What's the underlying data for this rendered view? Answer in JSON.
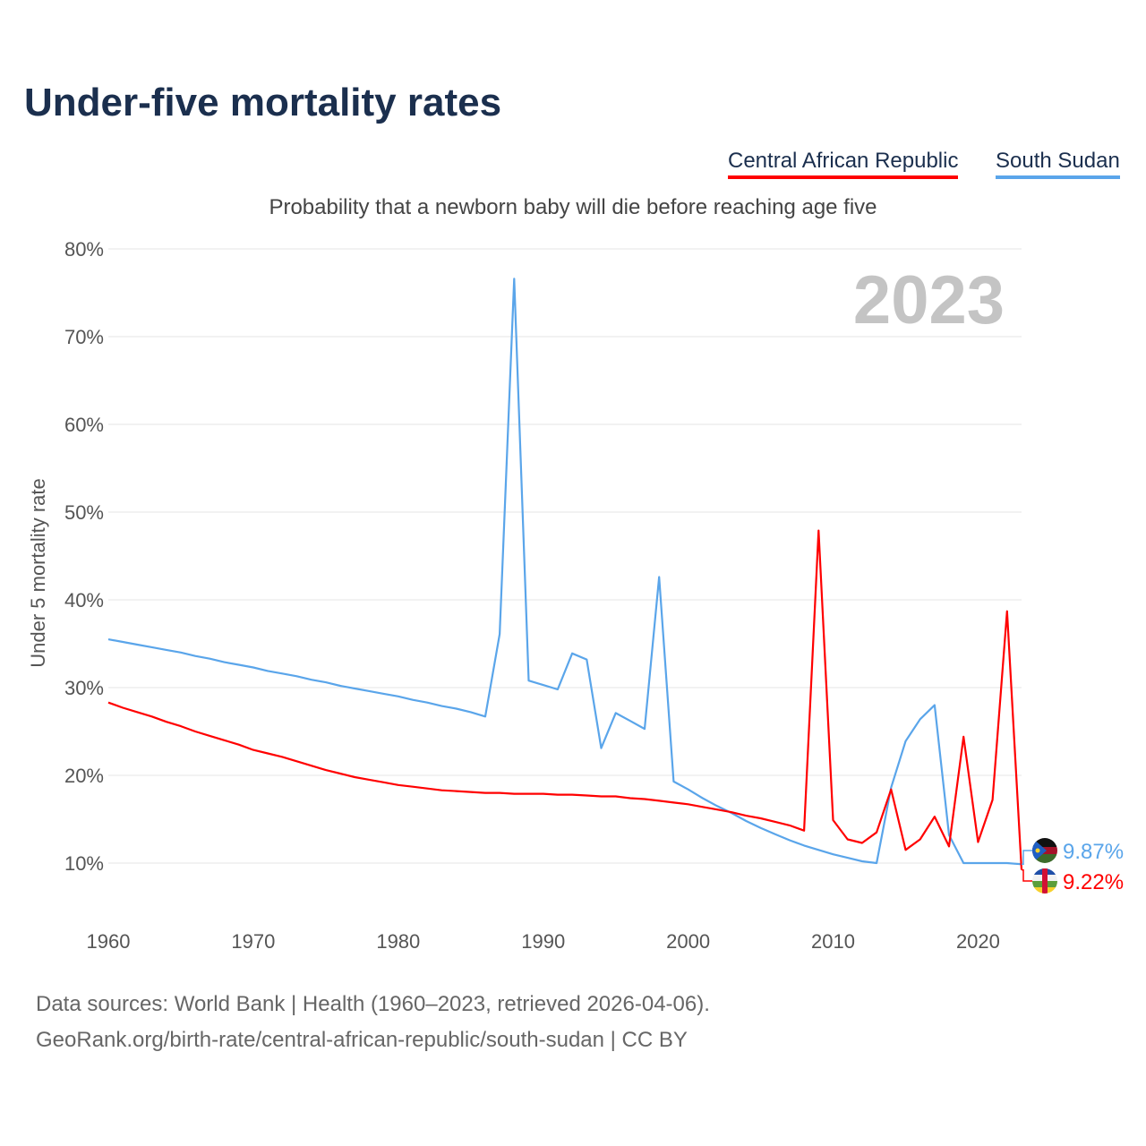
{
  "title": "Under-five mortality rates",
  "subtitle": "Probability that a newborn baby will die before reaching age five",
  "year_watermark": "2023",
  "source_line1": "Data sources: World Bank | Health (1960–2023, retrieved 2026-04-06).",
  "source_line2": "GeoRank.org/birth-rate/central-african-republic/south-sudan | CC BY",
  "chart_data": {
    "type": "line",
    "title": "Under-five mortality rates",
    "xlabel": "",
    "ylabel": "Under 5 mortality rate",
    "xlim": [
      1960,
      2023
    ],
    "ylim": [
      0,
      80
    ],
    "grid": true,
    "legend_position": "top-right",
    "x_ticks": [
      "1960",
      "1970",
      "1980",
      "1990",
      "2000",
      "2010",
      "2020"
    ],
    "y_ticks": [
      "10%",
      "20%",
      "30%",
      "40%",
      "50%",
      "60%",
      "70%",
      "80%"
    ],
    "y_tick_values": [
      10,
      20,
      30,
      40,
      50,
      60,
      70,
      80
    ],
    "x_start": 1960,
    "series": [
      {
        "name": "Central African Republic",
        "color": "#ff0000",
        "end_label": "9.22%",
        "flag": "flag-central-african-republic",
        "values": [
          28.3,
          27.7,
          27.2,
          26.7,
          26.1,
          25.6,
          25.0,
          24.5,
          24.0,
          23.5,
          22.9,
          22.5,
          22.1,
          21.6,
          21.1,
          20.6,
          20.2,
          19.8,
          19.5,
          19.2,
          18.9,
          18.7,
          18.5,
          18.3,
          18.2,
          18.1,
          18.0,
          18.0,
          17.9,
          17.9,
          17.9,
          17.8,
          17.8,
          17.7,
          17.6,
          17.6,
          17.4,
          17.3,
          17.1,
          16.9,
          16.7,
          16.4,
          16.1,
          15.8,
          15.4,
          15.1,
          14.7,
          14.3,
          13.7,
          47.9,
          14.9,
          12.7,
          12.3,
          13.5,
          18.4,
          11.5,
          12.7,
          15.3,
          11.9,
          24.4,
          12.4,
          17.2,
          38.7,
          9.22
        ]
      },
      {
        "name": "South Sudan",
        "color": "#5aa5ea",
        "end_label": "9.87%",
        "flag": "flag-south-sudan",
        "values": [
          35.5,
          35.2,
          34.9,
          34.6,
          34.3,
          34.0,
          33.6,
          33.3,
          32.9,
          32.6,
          32.3,
          31.9,
          31.6,
          31.3,
          30.9,
          30.6,
          30.2,
          29.9,
          29.6,
          29.3,
          29.0,
          28.6,
          28.3,
          27.9,
          27.6,
          27.2,
          26.7,
          36.1,
          76.6,
          30.8,
          30.3,
          29.8,
          33.9,
          33.2,
          23.1,
          27.1,
          26.2,
          25.3,
          42.6,
          19.3,
          18.4,
          17.4,
          16.5,
          15.7,
          14.8,
          14.0,
          13.3,
          12.6,
          12.0,
          11.5,
          11.0,
          10.6,
          10.2,
          10.0,
          18.6,
          23.9,
          26.4,
          28.0,
          13.2,
          10,
          10,
          10,
          10,
          9.87
        ]
      }
    ]
  }
}
